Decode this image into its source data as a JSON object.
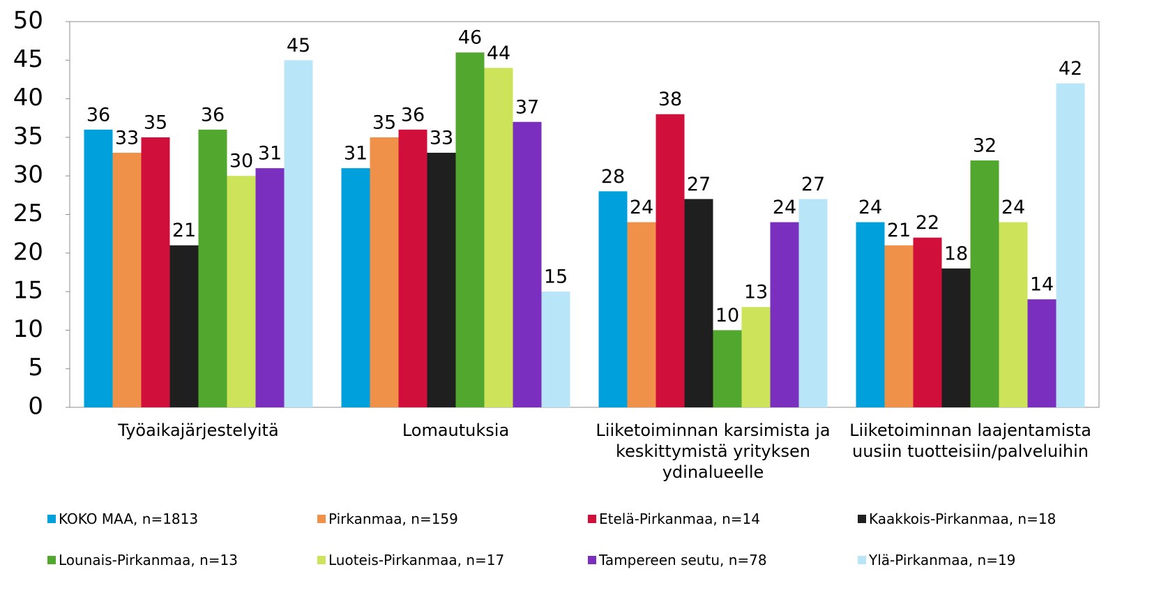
{
  "chart_data": {
    "type": "bar",
    "categories": [
      "Työaikajärjestelyitä",
      "Lomautuksia",
      "Liiketoiminnan karsimista ja keskittymistä yrityksen ydinalueelle",
      "Liiketoiminnan laajentamista uusiin tuotteisiin/palveluihin"
    ],
    "series": [
      {
        "name": "KOKO MAA, n=1813",
        "color": "#00a0dc",
        "values": [
          36,
          31,
          28,
          24
        ]
      },
      {
        "name": "Pirkanmaa, n=159",
        "color": "#f0914a",
        "values": [
          33,
          35,
          24,
          21
        ]
      },
      {
        "name": "Etelä-Pirkanmaa, n=14",
        "color": "#d0103a",
        "values": [
          35,
          36,
          38,
          22
        ]
      },
      {
        "name": "Kaakkois-Pirkanmaa, n=18",
        "color": "#1f1f1f",
        "values": [
          21,
          33,
          27,
          18
        ]
      },
      {
        "name": "Lounais-Pirkanmaa, n=13",
        "color": "#52a82e",
        "values": [
          36,
          46,
          10,
          32
        ]
      },
      {
        "name": "Luoteis-Pirkanmaa, n=17",
        "color": "#cce35a",
        "values": [
          30,
          44,
          13,
          24
        ]
      },
      {
        "name": "Tampereen seutu, n=78",
        "color": "#7b2fbe",
        "values": [
          31,
          37,
          24,
          14
        ]
      },
      {
        "name": "Ylä-Pirkanmaa, n=19",
        "color": "#b8e6f8",
        "values": [
          45,
          15,
          27,
          42
        ]
      }
    ],
    "ylim": [
      0,
      50
    ],
    "yticks": [
      0,
      5,
      10,
      15,
      20,
      25,
      30,
      35,
      40,
      45,
      50
    ],
    "legend": "bottom"
  }
}
